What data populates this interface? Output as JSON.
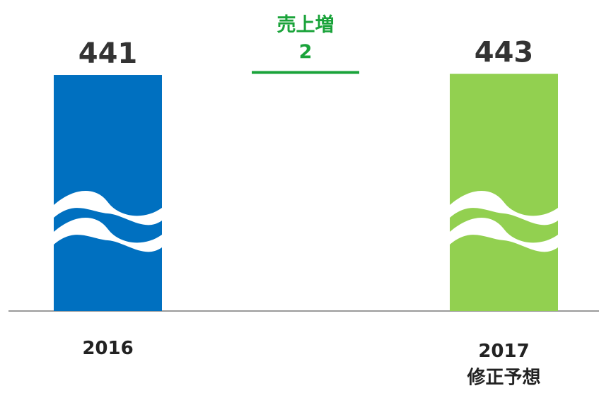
{
  "chart_data": {
    "type": "bar",
    "categories": [
      "2016",
      "2017\n修正予想"
    ],
    "values": [
      441,
      443
    ],
    "colors": [
      "#0070c0",
      "#92d050"
    ],
    "delta": {
      "label": "売上増",
      "value": 2,
      "color": "#1aa33a"
    },
    "ylim": [
      0,
      450
    ],
    "broken_axis": true
  }
}
